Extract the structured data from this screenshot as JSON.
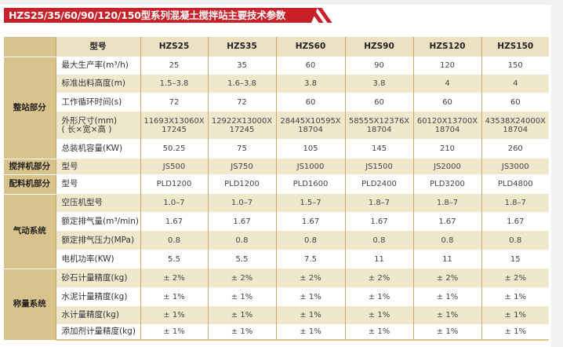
{
  "title": "HZS25/35/60/90/120/150型系列混凝土搅拌站主要技术参数",
  "colors": {
    "banner": "#c9202a",
    "category": "#d9c38c",
    "row_alt": "#efe8cd",
    "divider": "#c9a96b"
  },
  "header": {
    "label": "型号",
    "models": [
      "HZS25",
      "HZS35",
      "HZS60",
      "HZS90",
      "HZS120",
      "HZS150"
    ]
  },
  "groups": [
    {
      "name": "整站部分",
      "rows": [
        {
          "label": "最大生产率(m³/h)",
          "values": [
            "25",
            "35",
            "60",
            "90",
            "120",
            "150"
          ]
        },
        {
          "label": "标准出料高度(m)",
          "values": [
            "1.5–3.8",
            "1.6–3.8",
            "3.8",
            "3.8",
            "4",
            "4"
          ]
        },
        {
          "label": "工作循环时间(s)",
          "values": [
            "72",
            "72",
            "60",
            "60",
            "60",
            "60"
          ]
        },
        {
          "label": "外形尺寸(mm)",
          "label2": "( 长×宽×高 )",
          "values": [
            "11693X13060X",
            "12922X13000X",
            "28445X10595X",
            "58555X12376X",
            "60120X13700X",
            "43538X24000X"
          ],
          "values2": [
            "17245",
            "17245",
            "18704",
            "18704",
            "18704",
            "18704"
          ]
        },
        {
          "label": "总装机容量(KW)",
          "values": [
            "50.25",
            "75",
            "105",
            "145",
            "210",
            "260"
          ]
        }
      ]
    },
    {
      "name": "搅拌机部分",
      "rows": [
        {
          "label": "型号",
          "values": [
            "JS500",
            "JS750",
            "JS1000",
            "JS1500",
            "JS2000",
            "JS3000"
          ]
        }
      ]
    },
    {
      "name": "配料机部分",
      "rows": [
        {
          "label": "型号",
          "values": [
            "PLD1200",
            "PLD1200",
            "PLD1600",
            "PLD2400",
            "PLD3200",
            "PLD4800"
          ]
        }
      ]
    },
    {
      "name": "气动系统",
      "rows": [
        {
          "label": "空压机型号",
          "values": [
            "1.0–7",
            "1.0–7",
            "1.5–7",
            "1.8–7",
            "1.8–7",
            "1.8–7"
          ]
        },
        {
          "label": "额定排气量(m³/min)",
          "values": [
            "1.67",
            "1.67",
            "1.67",
            "1.67",
            "1.67",
            "1.67"
          ]
        },
        {
          "label": "额定排气压力(MPa)",
          "values": [
            "0.8",
            "0.8",
            "0.8",
            "0.8",
            "0.8",
            "0.8"
          ]
        },
        {
          "label": "电机功率(KW)",
          "values": [
            "5.5",
            "5.5",
            "7.5",
            "11",
            "11",
            "15"
          ]
        }
      ]
    },
    {
      "name": "称量系统",
      "rows": [
        {
          "label": "砂石计量精度(kg)",
          "values": [
            "± 2%",
            "± 2%",
            "± 2%",
            "± 2%",
            "± 2%",
            "± 2%"
          ]
        },
        {
          "label": "水泥计量精度(kg)",
          "values": [
            "± 1%",
            "± 1%",
            "± 1%",
            "± 1%",
            "± 1%",
            "± 1%"
          ]
        },
        {
          "label": "水计量精度(kg)",
          "values": [
            "± 1%",
            "± 1%",
            "± 1%",
            "± 1%",
            "± 1%",
            "± 1%"
          ]
        },
        {
          "label": "添加剂计量精度(kg)",
          "values": [
            "± 1%",
            "± 1%",
            "± 1%",
            "± 1%",
            "± 1%",
            "± 1%"
          ]
        }
      ]
    }
  ]
}
